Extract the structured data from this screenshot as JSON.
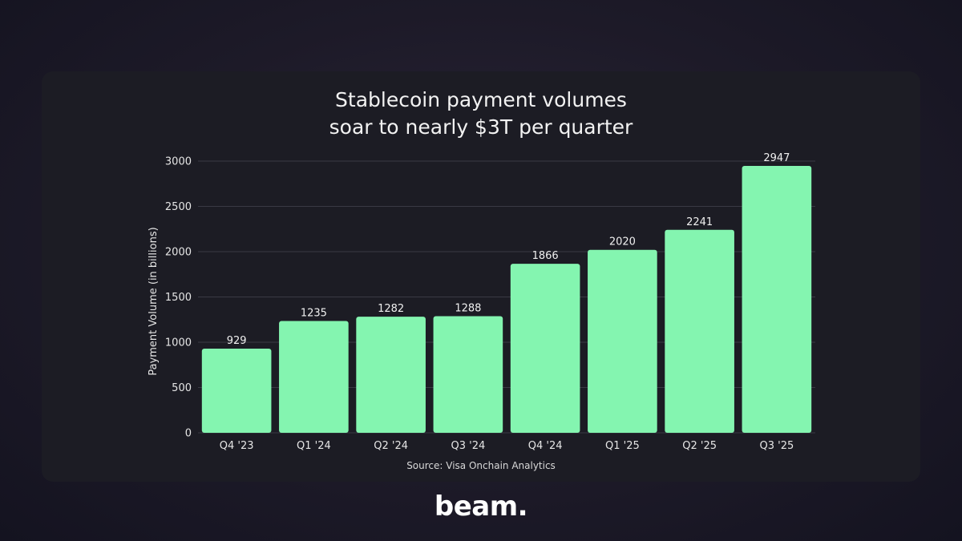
{
  "brand": {
    "logo_text": "beam."
  },
  "chart_data": {
    "type": "bar",
    "title": [
      "Stablecoin payment volumes",
      "soar to nearly $3T per quarter"
    ],
    "xlabel": "",
    "ylabel": "Payment Volume (in billions)",
    "categories": [
      "Q4 '23",
      "Q1 '24",
      "Q2 '24",
      "Q3 '24",
      "Q4 '24",
      "Q1 '25",
      "Q2 '25",
      "Q3 '25"
    ],
    "values": [
      929,
      1235,
      1282,
      1288,
      1866,
      2020,
      2241,
      2947
    ],
    "data_labels": [
      "929",
      "1235",
      "1282",
      "1288",
      "1866",
      "2020",
      "2241",
      "2947"
    ],
    "ylim": [
      0,
      3000
    ],
    "yticks": [
      0,
      500,
      1000,
      1500,
      2000,
      2500,
      3000
    ],
    "ytick_labels": [
      "0",
      "500",
      "1000",
      "1500",
      "2000",
      "2500",
      "3000"
    ],
    "grid": true,
    "legend": "none",
    "source": "Source: Visa Onchain Analytics",
    "colors": {
      "bar": "#84f5b0",
      "card_background": "#1c1c24",
      "gridline": "#3a3a44",
      "text": "#f2f2f2"
    }
  }
}
